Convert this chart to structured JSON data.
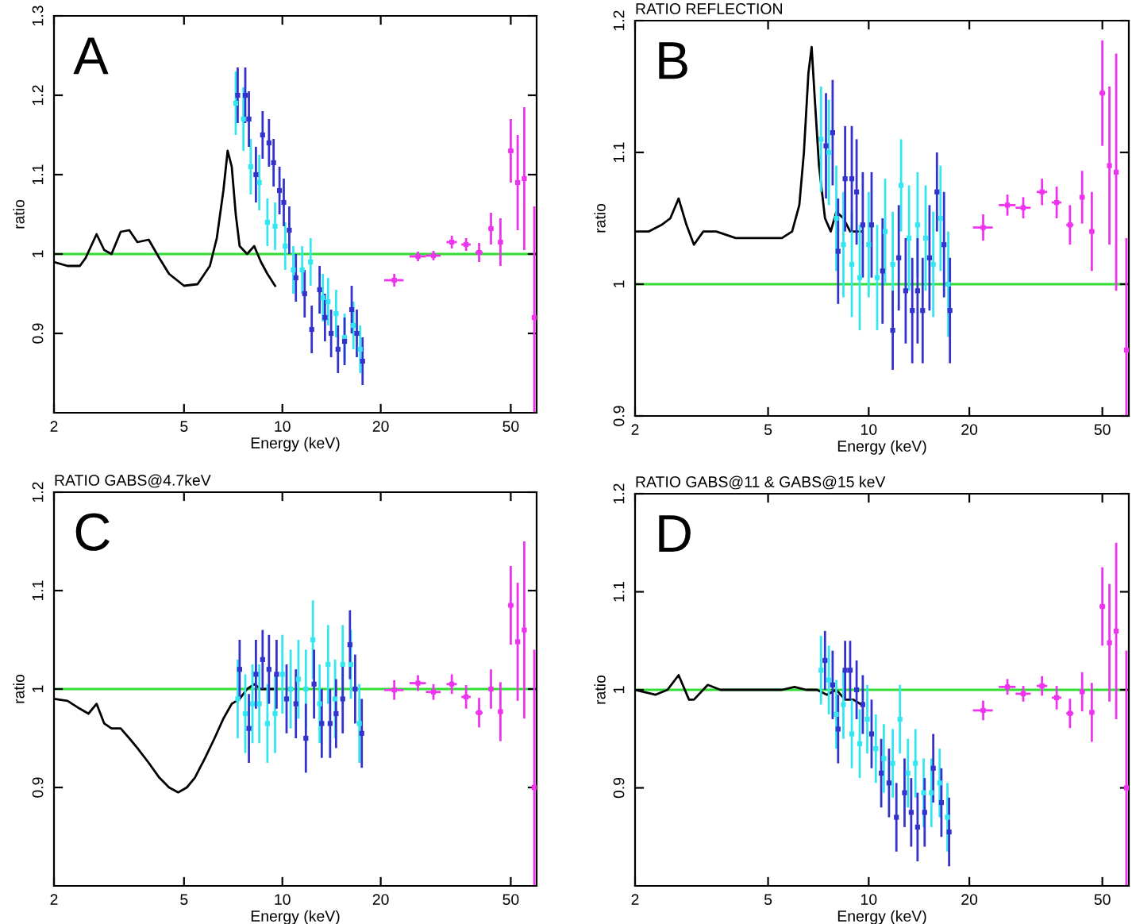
{
  "chart_data": [
    {
      "type": "scatter",
      "xlabel": "Energy (keV)",
      "ylabel": "ratio",
      "log": "x",
      "xlim": [
        2,
        60
      ],
      "xticks": [
        2,
        5,
        10,
        20,
        50
      ],
      "ylim": [
        0.8,
        1.3
      ],
      "yticks": [
        0.9,
        1,
        1.1,
        1.2,
        1.3
      ],
      "annotations": [
        "A"
      ],
      "ref_lines": [
        {
          "axis": "y",
          "value": 1,
          "color": "#33dd33"
        }
      ],
      "series": [
        {
          "type": "line",
          "color": "#000000",
          "x": [
            2,
            2.2,
            2.4,
            2.5,
            2.7,
            2.85,
            3.0,
            3.2,
            3.4,
            3.6,
            3.9,
            4.2,
            4.5,
            5.0,
            5.5,
            6.0,
            6.3,
            6.6,
            6.8,
            7.0,
            7.2,
            7.4,
            7.8,
            8.2,
            8.6,
            9.0,
            9.5
          ],
          "values": [
            0.99,
            0.985,
            0.985,
            0.995,
            1.025,
            1.005,
            1.0,
            1.028,
            1.03,
            1.015,
            1.018,
            0.995,
            0.975,
            0.96,
            0.962,
            0.985,
            1.02,
            1.08,
            1.13,
            1.11,
            1.05,
            1.01,
            1.0,
            1.01,
            0.99,
            0.975,
            0.96
          ]
        },
        {
          "marker": "square",
          "color": "#33e6f0",
          "x": [
            7.2,
            7.6,
            8.0,
            8.5,
            9.0,
            9.5,
            10.2,
            10.8,
            11.5,
            12.2,
            13.3,
            13.8,
            14.6,
            15.5,
            16.5,
            17.3
          ],
          "values": [
            1.19,
            1.17,
            1.11,
            1.09,
            1.04,
            1.035,
            1.01,
            0.98,
            0.98,
            0.99,
            0.945,
            0.94,
            0.925,
            0.895,
            0.91,
            0.88
          ],
          "errors": [
            0.04,
            0.04,
            0.035,
            0.035,
            0.03,
            0.03,
            0.03,
            0.03,
            0.03,
            0.03,
            0.03,
            0.03,
            0.03,
            0.03,
            0.03,
            0.03
          ]
        },
        {
          "marker": "square",
          "color": "#3333cc",
          "x": [
            7.3,
            7.7,
            7.9,
            8.3,
            8.7,
            9.1,
            9.4,
            9.8,
            10.1,
            10.5,
            11.0,
            11.7,
            12.3,
            13,
            13.5,
            14.1,
            14.8,
            15.5,
            16.3,
            16.9,
            17.6
          ],
          "values": [
            1.2,
            1.2,
            1.17,
            1.1,
            1.15,
            1.14,
            1.115,
            1.08,
            1.065,
            1.03,
            0.97,
            0.95,
            0.905,
            0.955,
            0.92,
            0.9,
            0.88,
            0.89,
            0.93,
            0.9,
            0.865
          ],
          "errors": [
            0.035,
            0.035,
            0.035,
            0.035,
            0.03,
            0.03,
            0.03,
            0.03,
            0.03,
            0.03,
            0.03,
            0.03,
            0.03,
            0.03,
            0.03,
            0.03,
            0.03,
            0.03,
            0.03,
            0.03,
            0.03
          ]
        },
        {
          "marker": "square",
          "color": "#ee33ee",
          "x": [
            22,
            26,
            29,
            33,
            36.5,
            40,
            43.5,
            46.5,
            50,
            52.5,
            55,
            59
          ],
          "values": [
            0.967,
            0.997,
            0.998,
            1.015,
            1.012,
            1.002,
            1.032,
            1.015,
            1.13,
            1.09,
            1.095,
            0.92
          ],
          "errors": [
            0.008,
            0.006,
            0.006,
            0.008,
            0.008,
            0.012,
            0.02,
            0.03,
            0.04,
            0.06,
            0.09,
            [
              0.8,
              1.06
            ]
          ],
          "xerrors": [
            1.5,
            1.5,
            1.5,
            1.2,
            1.2,
            1,
            0.8,
            0.8,
            1,
            0.6,
            0.5,
            0.3
          ]
        }
      ]
    },
    {
      "type": "scatter",
      "title": "RATIO REFLECTION",
      "xlabel": "Energy (keV)",
      "ylabel": "ratio",
      "log": "x",
      "xlim": [
        2,
        60
      ],
      "xticks": [
        2,
        5,
        10,
        20,
        50
      ],
      "ylim": [
        0.9,
        1.2
      ],
      "yticks": [
        0.9,
        1,
        1.1,
        1.2
      ],
      "annotations": [
        "B"
      ],
      "ref_lines": [
        {
          "axis": "y",
          "value": 1,
          "color": "#33dd33"
        }
      ],
      "series": [
        {
          "type": "line",
          "color": "#000000",
          "x": [
            2,
            2.2,
            2.4,
            2.55,
            2.7,
            2.85,
            3.0,
            3.2,
            3.5,
            4.0,
            4.5,
            5.0,
            5.5,
            5.9,
            6.2,
            6.4,
            6.6,
            6.75,
            6.9,
            7.1,
            7.4,
            7.7,
            8.0,
            8.4,
            8.8,
            9.2,
            9.5
          ],
          "values": [
            1.04,
            1.04,
            1.045,
            1.05,
            1.065,
            1.045,
            1.03,
            1.04,
            1.04,
            1.035,
            1.035,
            1.035,
            1.035,
            1.04,
            1.06,
            1.1,
            1.16,
            1.18,
            1.14,
            1.09,
            1.05,
            1.04,
            1.055,
            1.05,
            1.04,
            1.04,
            1.04
          ]
        },
        {
          "marker": "square",
          "color": "#33e6f0",
          "x": [
            7.2,
            7.6,
            8.0,
            8.4,
            8.9,
            9.4,
            10.0,
            10.6,
            11.2,
            11.8,
            12.5,
            13.2,
            14,
            14.8,
            15.6,
            16.4,
            17.3
          ],
          "values": [
            1.11,
            1.1,
            1.05,
            1.03,
            1.015,
            1.005,
            1.03,
            1.005,
            1.04,
            1.015,
            1.075,
            1.035,
            1.045,
            1.035,
            1.015,
            1.05,
            1.0
          ],
          "errors": [
            0.04,
            0.04,
            0.04,
            0.04,
            0.04,
            0.04,
            0.04,
            0.04,
            0.04,
            0.04,
            0.035,
            0.04,
            0.04,
            0.04,
            0.04,
            0.04,
            0.04
          ]
        },
        {
          "marker": "square",
          "color": "#3333cc",
          "x": [
            7.45,
            7.8,
            8.1,
            8.5,
            8.9,
            9.2,
            9.6,
            10.2,
            11,
            11.8,
            12.3,
            12.9,
            13.5,
            14,
            14.5,
            15.2,
            16,
            16.8,
            17.5
          ],
          "values": [
            1.105,
            1.115,
            1.025,
            1.08,
            1.08,
            1.07,
            1.045,
            1.045,
            1.01,
            0.965,
            1.02,
            0.995,
            0.98,
            0.995,
            0.98,
            1.02,
            1.07,
            1.03,
            0.98
          ],
          "errors": [
            0.04,
            0.04,
            0.04,
            0.04,
            0.04,
            0.04,
            0.04,
            0.04,
            0.04,
            0.03,
            0.04,
            0.04,
            0.04,
            0.04,
            0.04,
            0.04,
            0.03,
            0.04,
            0.04
          ]
        },
        {
          "color": "#ee33ee",
          "x": [
            22,
            26,
            29,
            33,
            36.5,
            40,
            43.5,
            46.5,
            50,
            52.5,
            55,
            59
          ],
          "marker": "square",
          "values": [
            1.043,
            1.06,
            1.058,
            1.07,
            1.062,
            1.045,
            1.066,
            1.04,
            1.145,
            1.09,
            1.085,
            0.95
          ],
          "errors": [
            0.01,
            0.008,
            0.008,
            0.01,
            0.012,
            0.015,
            0.02,
            0.03,
            0.04,
            0.06,
            0.09,
            [
              0.9,
              1.035
            ]
          ],
          "xerrors": [
            1.5,
            1.5,
            1.5,
            1.2,
            1.2,
            1,
            0.8,
            0.8,
            1,
            0.6,
            0.5,
            0.3
          ]
        }
      ]
    },
    {
      "type": "scatter",
      "title": "RATIO GABS@4.7keV",
      "xlabel": "Energy (keV)",
      "ylabel": "ratio",
      "log": "x",
      "xlim": [
        2,
        60
      ],
      "xticks": [
        2,
        5,
        10,
        20,
        50
      ],
      "ylim": [
        0.8,
        1.2
      ],
      "yticks": [
        0.9,
        1,
        1.1,
        1.2
      ],
      "annotations": [
        "C"
      ],
      "ref_lines": [
        {
          "axis": "y",
          "value": 1,
          "color": "#33dd33"
        }
      ],
      "series": [
        {
          "type": "line",
          "color": "#000000",
          "x": [
            2,
            2.2,
            2.4,
            2.55,
            2.7,
            2.85,
            3.0,
            3.2,
            3.4,
            3.6,
            3.9,
            4.2,
            4.5,
            4.8,
            5.1,
            5.4,
            5.8,
            6.2,
            6.6,
            7.0,
            7.4,
            7.8,
            8.2,
            8.6,
            9.0,
            9.4
          ],
          "values": [
            0.99,
            0.988,
            0.98,
            0.975,
            0.985,
            0.965,
            0.96,
            0.96,
            0.95,
            0.94,
            0.925,
            0.91,
            0.9,
            0.895,
            0.9,
            0.91,
            0.93,
            0.95,
            0.97,
            0.985,
            0.99,
            1.0,
            1.005,
            1.0,
            1.0,
            1.0
          ]
        },
        {
          "marker": "square",
          "color": "#33e6f0",
          "x": [
            7.3,
            7.7,
            8.1,
            8.5,
            9.0,
            9.5,
            10,
            10.6,
            11.2,
            11.8,
            12.4,
            13,
            13.8,
            14.5,
            15.3,
            16.2,
            17.2
          ],
          "values": [
            0.99,
            0.975,
            0.985,
            0.985,
            0.965,
            0.975,
            1.015,
            1.0,
            1.01,
            1.0,
            1.05,
            0.985,
            1.025,
            0.99,
            1.025,
            1.025,
            0.965
          ],
          "errors": [
            0.04,
            0.04,
            0.04,
            0.04,
            0.04,
            0.04,
            0.04,
            0.04,
            0.04,
            0.04,
            0.04,
            0.04,
            0.04,
            0.04,
            0.04,
            0.035,
            0.04
          ]
        },
        {
          "marker": "square",
          "color": "#3333cc",
          "x": [
            7.4,
            7.9,
            8.3,
            8.7,
            9.1,
            9.6,
            10.3,
            11,
            11.8,
            12.5,
            13.2,
            14,
            14.6,
            15.3,
            16.1,
            16.7,
            17.5
          ],
          "values": [
            1.02,
            0.96,
            1.015,
            1.03,
            1.02,
            1.015,
            0.99,
            0.985,
            0.95,
            1.005,
            0.965,
            0.965,
            0.975,
            0.99,
            1.045,
            1.0,
            0.955
          ],
          "errors": [
            0.03,
            0.035,
            0.035,
            0.03,
            0.035,
            0.035,
            0.035,
            0.035,
            0.035,
            0.035,
            0.035,
            0.035,
            0.035,
            0.035,
            0.035,
            0.035,
            0.035
          ]
        },
        {
          "color": "#ee33ee",
          "x": [
            22,
            26,
            29,
            33,
            36.5,
            40,
            43.5,
            46.5,
            50,
            52.5,
            55,
            59
          ],
          "marker": "square",
          "values": [
            0.999,
            1.006,
            0.997,
            1.005,
            0.992,
            0.976,
            1.0,
            0.977,
            1.085,
            1.048,
            1.06,
            0.9
          ],
          "errors": [
            0.01,
            0.008,
            0.008,
            0.01,
            0.012,
            0.015,
            0.02,
            0.03,
            0.04,
            0.06,
            0.09,
            [
              0.8,
              1.04
            ]
          ],
          "xerrors": [
            1.5,
            1.5,
            1.5,
            1.2,
            1.2,
            1,
            0.8,
            0.8,
            1,
            0.6,
            0.5,
            0.3
          ]
        }
      ]
    },
    {
      "type": "scatter",
      "title": "RATIO GABS@11 & GABS@15 keV",
      "xlabel": "Energy (keV)",
      "ylabel": "ratio",
      "log": "x",
      "xlim": [
        2,
        60
      ],
      "xticks": [
        2,
        5,
        10,
        20,
        50
      ],
      "ylim": [
        0.8,
        1.2
      ],
      "yticks": [
        0.9,
        1,
        1.1,
        1.2
      ],
      "annotations": [
        "D"
      ],
      "ref_lines": [
        {
          "axis": "y",
          "value": 1,
          "color": "#33dd33"
        }
      ],
      "series": [
        {
          "type": "line",
          "color": "#000000",
          "x": [
            2,
            2.3,
            2.5,
            2.7,
            2.9,
            3.0,
            3.3,
            3.6,
            4,
            4.5,
            5,
            5.5,
            6,
            6.5,
            7,
            7.5,
            8,
            8.5,
            9,
            9.5
          ],
          "values": [
            1.0,
            0.995,
            1.0,
            1.015,
            0.99,
            0.99,
            1.005,
            1.0,
            1.0,
            1.0,
            1.0,
            1.0,
            1.003,
            1.0,
            1.0,
            0.995,
            1.0,
            0.99,
            0.99,
            0.985
          ]
        },
        {
          "marker": "square",
          "color": "#33e6f0",
          "x": [
            7.2,
            7.6,
            8.0,
            8.4,
            8.9,
            9.4,
            9.9,
            10.5,
            11.1,
            11.8,
            12.4,
            13.1,
            13.8,
            14.6,
            15.4,
            16.3,
            17.2
          ],
          "values": [
            1.02,
            1.01,
            0.975,
            0.985,
            0.955,
            0.945,
            0.97,
            0.94,
            0.93,
            0.925,
            0.97,
            0.915,
            0.925,
            0.895,
            0.895,
            0.905,
            0.87
          ],
          "errors": [
            0.035,
            0.035,
            0.035,
            0.035,
            0.035,
            0.035,
            0.035,
            0.035,
            0.035,
            0.035,
            0.035,
            0.035,
            0.035,
            0.035,
            0.035,
            0.035,
            0.035
          ]
        },
        {
          "marker": "square",
          "color": "#3333cc",
          "x": [
            7.4,
            7.8,
            8.1,
            8.5,
            8.8,
            9.2,
            9.6,
            10.2,
            10.9,
            11.5,
            12.1,
            12.8,
            13.4,
            14,
            14.7,
            15.6,
            16.5,
            17.4
          ],
          "values": [
            1.03,
            1.005,
            0.96,
            1.02,
            1.02,
            1.0,
            0.985,
            0.955,
            0.915,
            0.905,
            0.87,
            0.895,
            0.875,
            0.86,
            0.875,
            0.92,
            0.885,
            0.855
          ],
          "errors": [
            0.03,
            0.035,
            0.035,
            0.03,
            0.03,
            0.03,
            0.03,
            0.035,
            0.035,
            0.035,
            0.035,
            0.035,
            0.035,
            0.035,
            0.035,
            0.035,
            0.035,
            0.035
          ]
        },
        {
          "color": "#ee33ee",
          "x": [
            22,
            26,
            29,
            33,
            36.5,
            40,
            43.5,
            46.5,
            50,
            52.5,
            55,
            59
          ],
          "marker": "square",
          "values": [
            0.979,
            1.003,
            0.996,
            1.004,
            0.992,
            0.976,
            0.998,
            0.977,
            1.085,
            1.048,
            1.06,
            0.9
          ],
          "errors": [
            0.01,
            0.008,
            0.008,
            0.01,
            0.012,
            0.015,
            0.02,
            0.03,
            0.04,
            0.06,
            0.09,
            [
              0.8,
              1.04
            ]
          ],
          "xerrors": [
            1.5,
            1.5,
            1.5,
            1.2,
            1.2,
            1,
            0.8,
            0.8,
            1,
            0.6,
            0.5,
            0.3
          ]
        }
      ]
    }
  ]
}
